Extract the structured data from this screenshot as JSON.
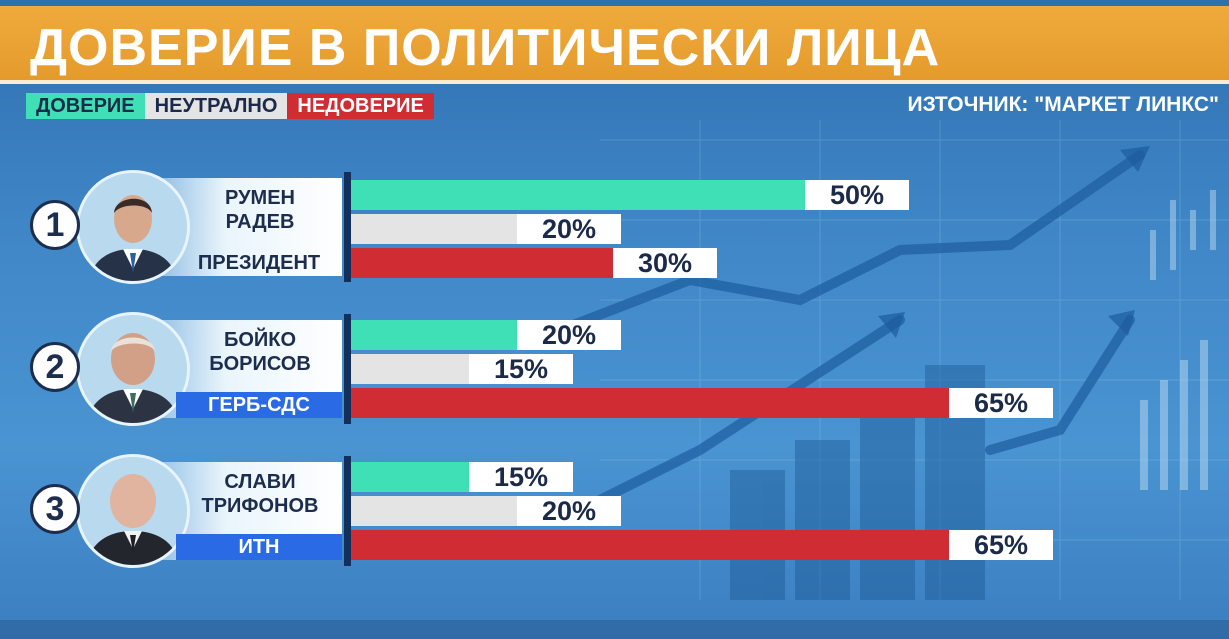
{
  "header": {
    "title": "ДОВЕРИЕ В ПОЛИТИЧЕСКИ ЛИЦА",
    "source": "ИЗТОЧНИК: \"МАРКЕТ ЛИНКС\""
  },
  "legend": {
    "trust": "ДОВЕРИЕ",
    "neutral": "НЕУТРАЛНО",
    "distrust": "НЕДОВЕРИЕ"
  },
  "colors": {
    "trust": "#3fe0b6",
    "neutral": "#e4e4e4",
    "distrust": "#cf2c34",
    "title_bar": "#e39a2b",
    "party_tag": "#2a6ae4"
  },
  "people": [
    {
      "rank": "1",
      "name_line1": "РУМЕН",
      "name_line2": "РАДЕВ",
      "role": "ПРЕЗИДЕНТ",
      "role_highlight": false,
      "trust_label": "50%",
      "neutral_label": "20%",
      "distrust_label": "30%"
    },
    {
      "rank": "2",
      "name_line1": "БОЙКО",
      "name_line2": "БОРИСОВ",
      "role": "ГЕРБ-СДС",
      "role_highlight": true,
      "trust_label": "20%",
      "neutral_label": "15%",
      "distrust_label": "65%"
    },
    {
      "rank": "3",
      "name_line1": "СЛАВИ",
      "name_line2": "ТРИФОНОВ",
      "role": "ИТН",
      "role_highlight": true,
      "trust_label": "15%",
      "neutral_label": "20%",
      "distrust_label": "65%"
    }
  ],
  "chart_data": {
    "type": "bar",
    "title": "ДОВЕРИЕ В ПОЛИТИЧЕСКИ ЛИЦА",
    "categories": [
      "РУМЕН РАДЕВ",
      "БОЙКО БОРИСОВ",
      "СЛАВИ ТРИФОНОВ"
    ],
    "series": [
      {
        "name": "ДОВЕРИЕ",
        "values": [
          50,
          20,
          15
        ]
      },
      {
        "name": "НЕУТРАЛНО",
        "values": [
          20,
          15,
          20
        ]
      },
      {
        "name": "НЕДОВЕРИЕ",
        "values": [
          30,
          65,
          65
        ]
      }
    ],
    "orientation": "horizontal",
    "unit": "%",
    "legend_position": "top-left",
    "xlim": [
      0,
      100
    ]
  }
}
